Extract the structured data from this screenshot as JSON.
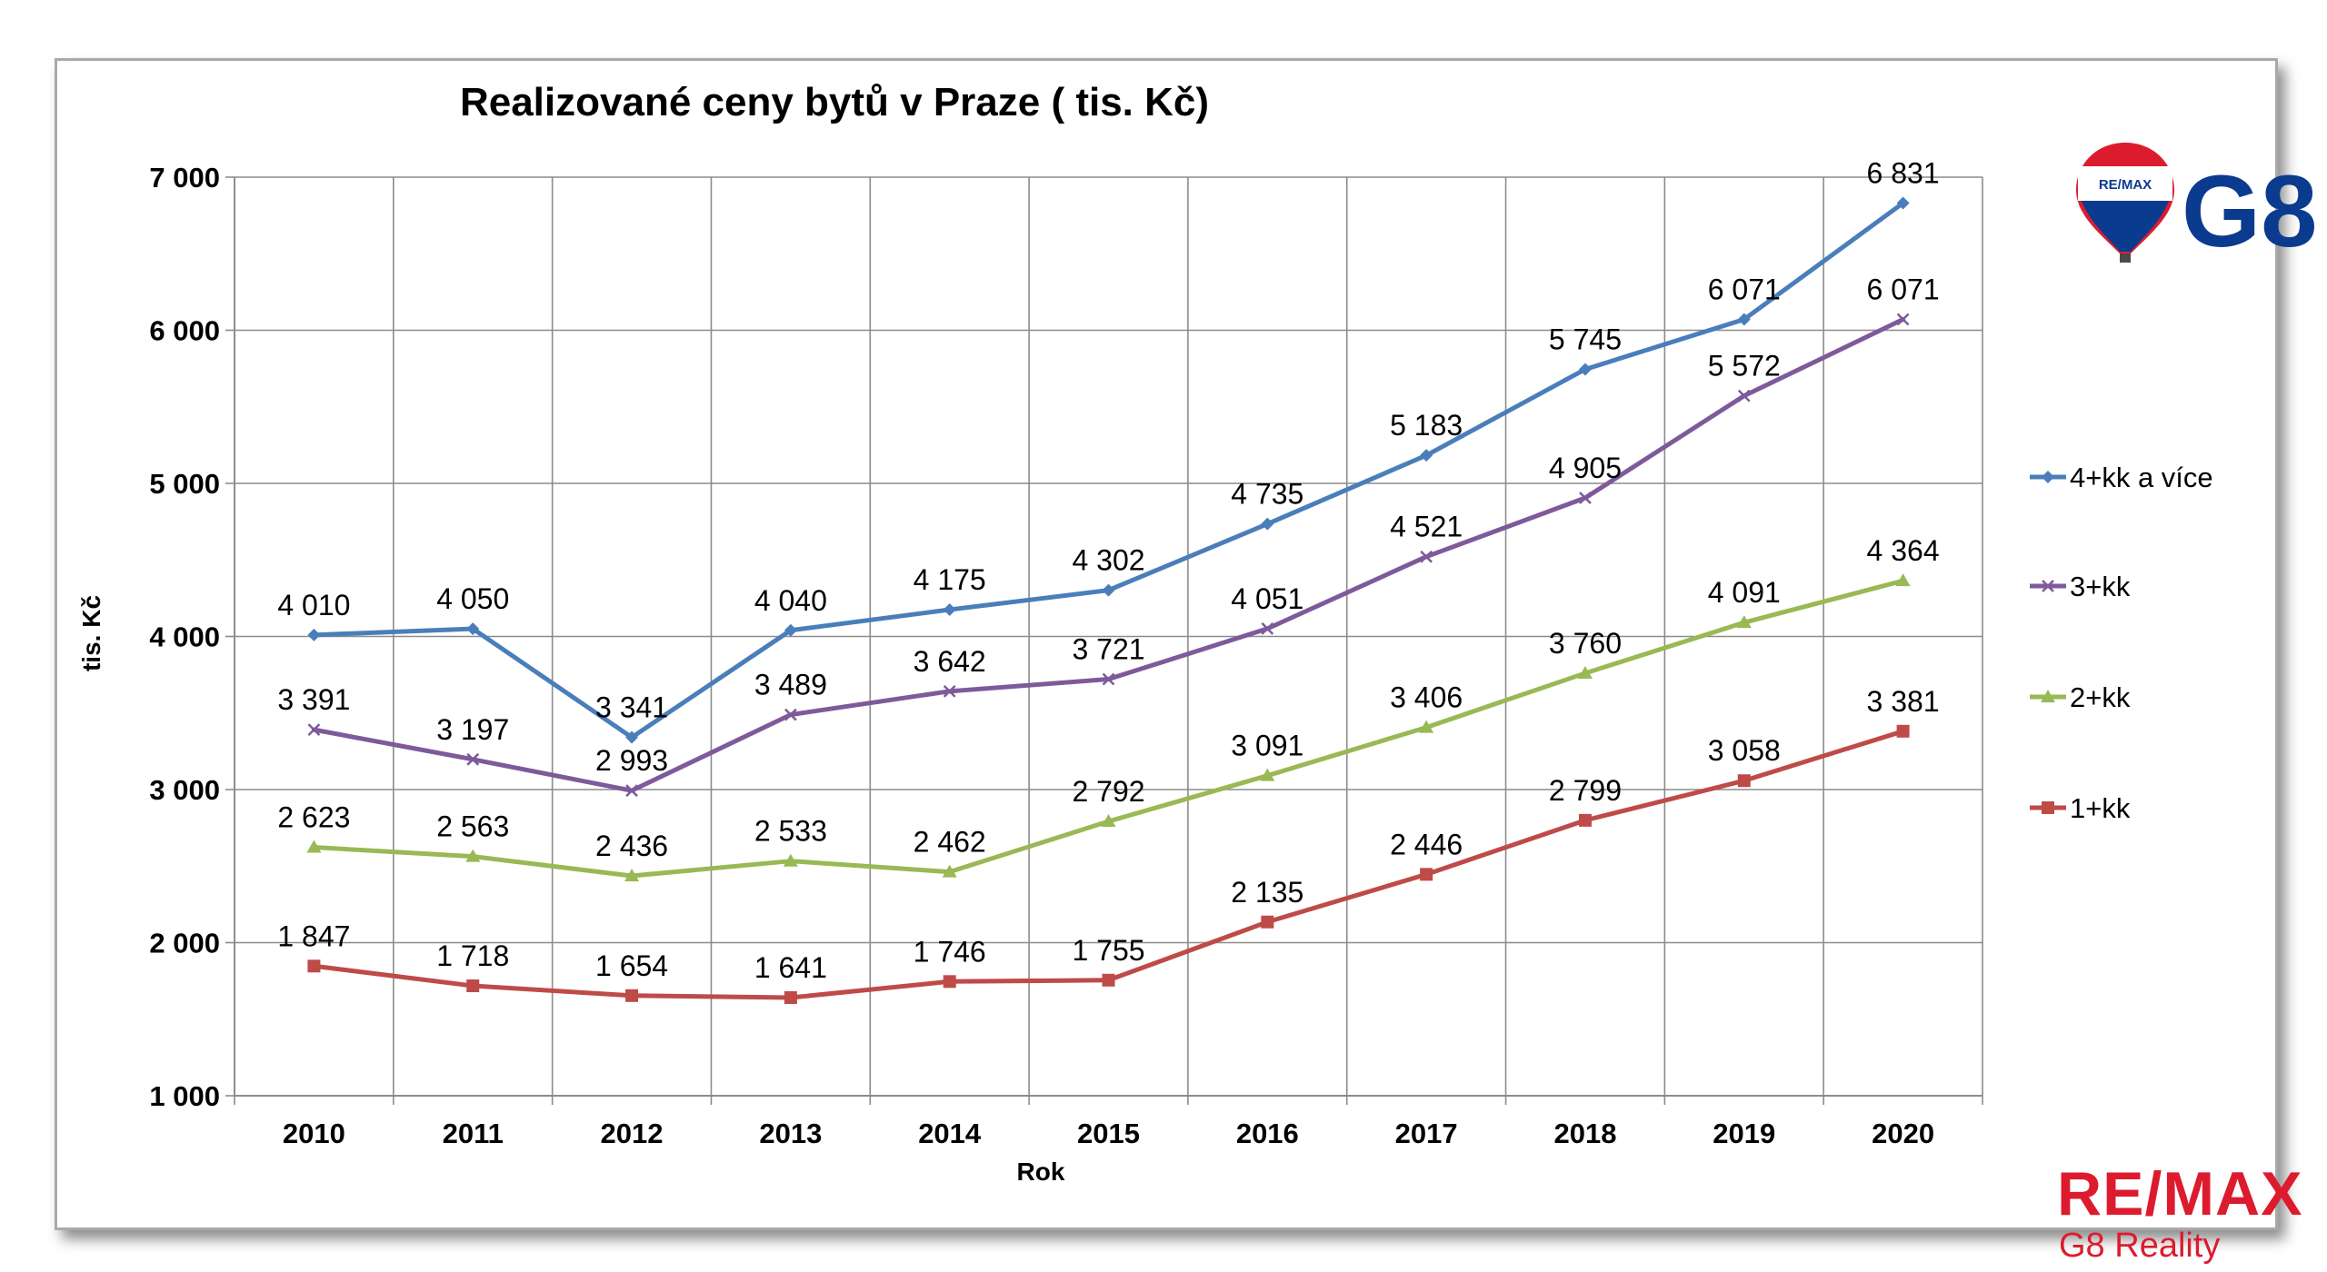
{
  "chart_data": {
    "type": "line",
    "title": "Realizované ceny bytů v Praze ( tis. Kč)",
    "xlabel": "Rok",
    "ylabel": "tis. Kč",
    "ylim": [
      1000,
      7000
    ],
    "y_ticks": [
      1000,
      2000,
      3000,
      4000,
      5000,
      6000,
      7000
    ],
    "y_tick_labels": [
      "1 000",
      "2 000",
      "3 000",
      "4 000",
      "5 000",
      "6 000",
      "7 000"
    ],
    "grid": true,
    "legend_position": "right",
    "categories": [
      "2010",
      "2011",
      "2012",
      "2013",
      "2014",
      "2015",
      "2016",
      "2017",
      "2018",
      "2019",
      "2020"
    ],
    "series": [
      {
        "name": "4+kk a více",
        "color": "#4a7ebb",
        "marker": "diamond",
        "values": [
          4010,
          4050,
          3341,
          4040,
          4175,
          4302,
          4735,
          5183,
          5745,
          6071,
          6831
        ],
        "labels": [
          "4 010",
          "4 050",
          "3 341",
          "4 040",
          "4 175",
          "4 302",
          "4 735",
          "5 183",
          "5 745",
          "6 071",
          "6 831"
        ]
      },
      {
        "name": "3+kk",
        "color": "#7e5a9b",
        "marker": "x",
        "values": [
          3391,
          3197,
          2993,
          3489,
          3642,
          3721,
          4051,
          4521,
          4905,
          5572,
          6071
        ],
        "labels": [
          "3 391",
          "3 197",
          "2 993",
          "3 489",
          "3 642",
          "3 721",
          "4 051",
          "4 521",
          "4 905",
          "5 572",
          "6 071"
        ]
      },
      {
        "name": "2+kk",
        "color": "#98b954",
        "marker": "triangle",
        "values": [
          2623,
          2563,
          2436,
          2533,
          2462,
          2792,
          3091,
          3406,
          3760,
          4091,
          4364
        ],
        "labels": [
          "2 623",
          "2 563",
          "2 436",
          "2 533",
          "2 462",
          "2 792",
          "3 091",
          "3 406",
          "3 760",
          "4 091",
          "4 364"
        ]
      },
      {
        "name": "1+kk",
        "color": "#be4b48",
        "marker": "square",
        "values": [
          1847,
          1718,
          1654,
          1641,
          1746,
          1755,
          2135,
          2446,
          2799,
          3058,
          3381
        ],
        "labels": [
          "1 847",
          "1 718",
          "1 654",
          "1 641",
          "1 746",
          "1 755",
          "2 135",
          "2 446",
          "2 799",
          "3 058",
          "3 381"
        ]
      }
    ]
  },
  "logos": {
    "top_balloon_text": "RE/MAX",
    "top_brand_text": "G8",
    "bottom_brand_text": "RE/MAX",
    "bottom_sub_text": "G8 Reality",
    "brand_red": "#dc1c2e",
    "brand_blue": "#0b3b8f"
  }
}
